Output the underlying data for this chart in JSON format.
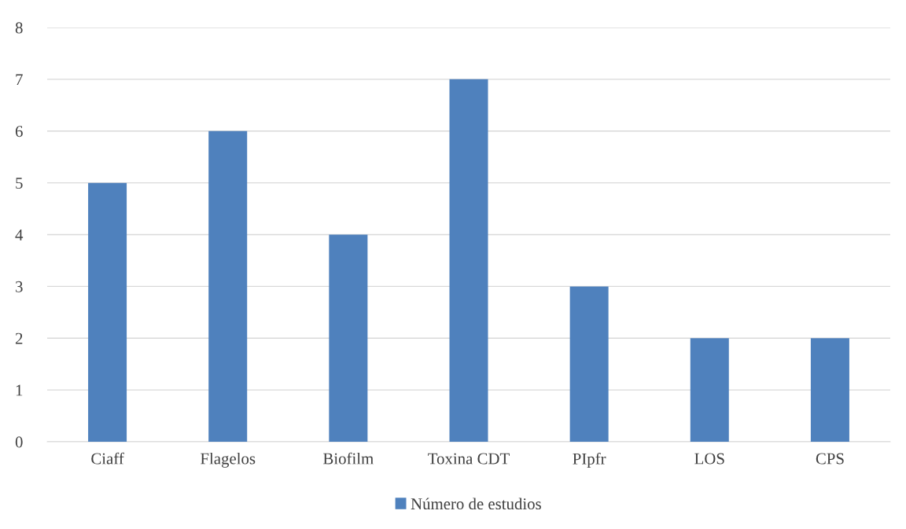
{
  "chart_data": {
    "type": "bar",
    "categories": [
      "Ciaff",
      "Flagelos",
      "Biofilm",
      "Toxina CDT",
      "PIpfr",
      "LOS",
      "CPS"
    ],
    "series": [
      {
        "name": "Número de estudios",
        "color": "#4f81bd",
        "values": [
          5,
          6,
          4,
          7,
          3,
          2,
          2
        ]
      }
    ],
    "ylim": [
      0,
      8
    ],
    "yticks": [
      0,
      1,
      2,
      3,
      4,
      5,
      6,
      7,
      8
    ],
    "grid": "y",
    "legend": "bottom"
  }
}
